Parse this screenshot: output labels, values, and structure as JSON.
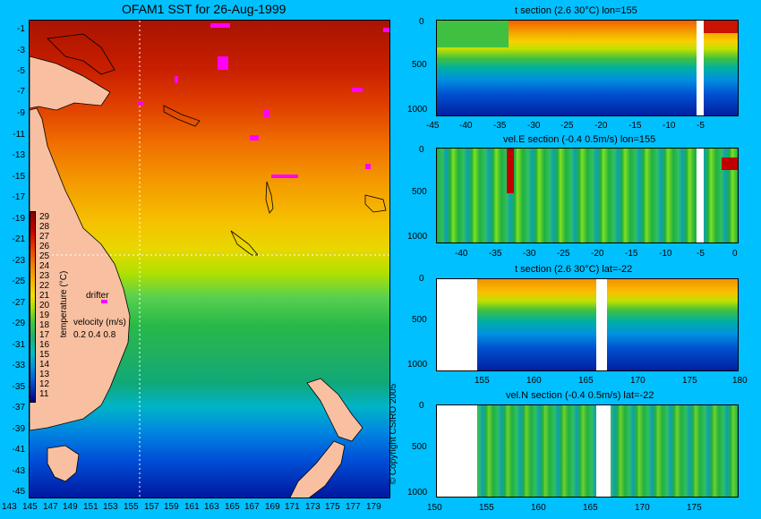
{
  "map": {
    "title": "OFAM1 SST for 26-Aug-1999",
    "x_ticks": [
      "143",
      "145",
      "147",
      "149",
      "151",
      "153",
      "155",
      "157",
      "159",
      "161",
      "163",
      "165",
      "167",
      "169",
      "171",
      "173",
      "175",
      "177",
      "179"
    ],
    "y_ticks": [
      "-1",
      "-3",
      "-5",
      "-7",
      "-9",
      "-11",
      "-13",
      "-15",
      "-17",
      "-19",
      "-21",
      "-23",
      "-25",
      "-27",
      "-29",
      "-31",
      "-33",
      "-35",
      "-37",
      "-39",
      "-41",
      "-43",
      "-45"
    ],
    "colorbar_ticks": [
      "29",
      "28",
      "27",
      "26",
      "25",
      "24",
      "23",
      "22",
      "21",
      "20",
      "19",
      "18",
      "17",
      "16",
      "15",
      "14",
      "13",
      "12",
      "11"
    ],
    "colorbar_label": "temperature (°C)",
    "drifter_label": "drifter",
    "velocity_label": "velocity (m/s)",
    "velocity_scale": "0.2 0.4 0.8",
    "copyright": "© Copyright CSIRO 2005",
    "colors": {
      "land": "#f8c0a0",
      "background": "#00c0ff",
      "drifter": "#ff00ff"
    }
  },
  "sections": [
    {
      "title": "t section (2.6       30°C) lon=155",
      "y_ticks": [
        "0",
        "500",
        "1000"
      ],
      "x_ticks": [
        "-45",
        "-40",
        "-35",
        "-30",
        "-25",
        "-20",
        "-15",
        "-10",
        "-5"
      ]
    },
    {
      "title": "vel.E section (-0.4       0.5m/s) lon=155",
      "y_ticks": [
        "0",
        "500",
        "1000"
      ],
      "x_ticks": [
        "-40",
        "-35",
        "-30",
        "-25",
        "-20",
        "-15",
        "-10",
        "-5",
        "0"
      ]
    },
    {
      "title": "t section (2.6       30°C) lat=-22",
      "y_ticks": [
        "0",
        "500",
        "1000"
      ],
      "x_ticks": [
        "155",
        "160",
        "165",
        "170",
        "175",
        "180"
      ]
    },
    {
      "title": "vel.N section (-0.4       0.5m/s) lat=-22",
      "y_ticks": [
        "0",
        "500",
        "1000"
      ],
      "x_ticks": [
        "150",
        "155",
        "160",
        "165",
        "170",
        "175"
      ]
    }
  ]
}
